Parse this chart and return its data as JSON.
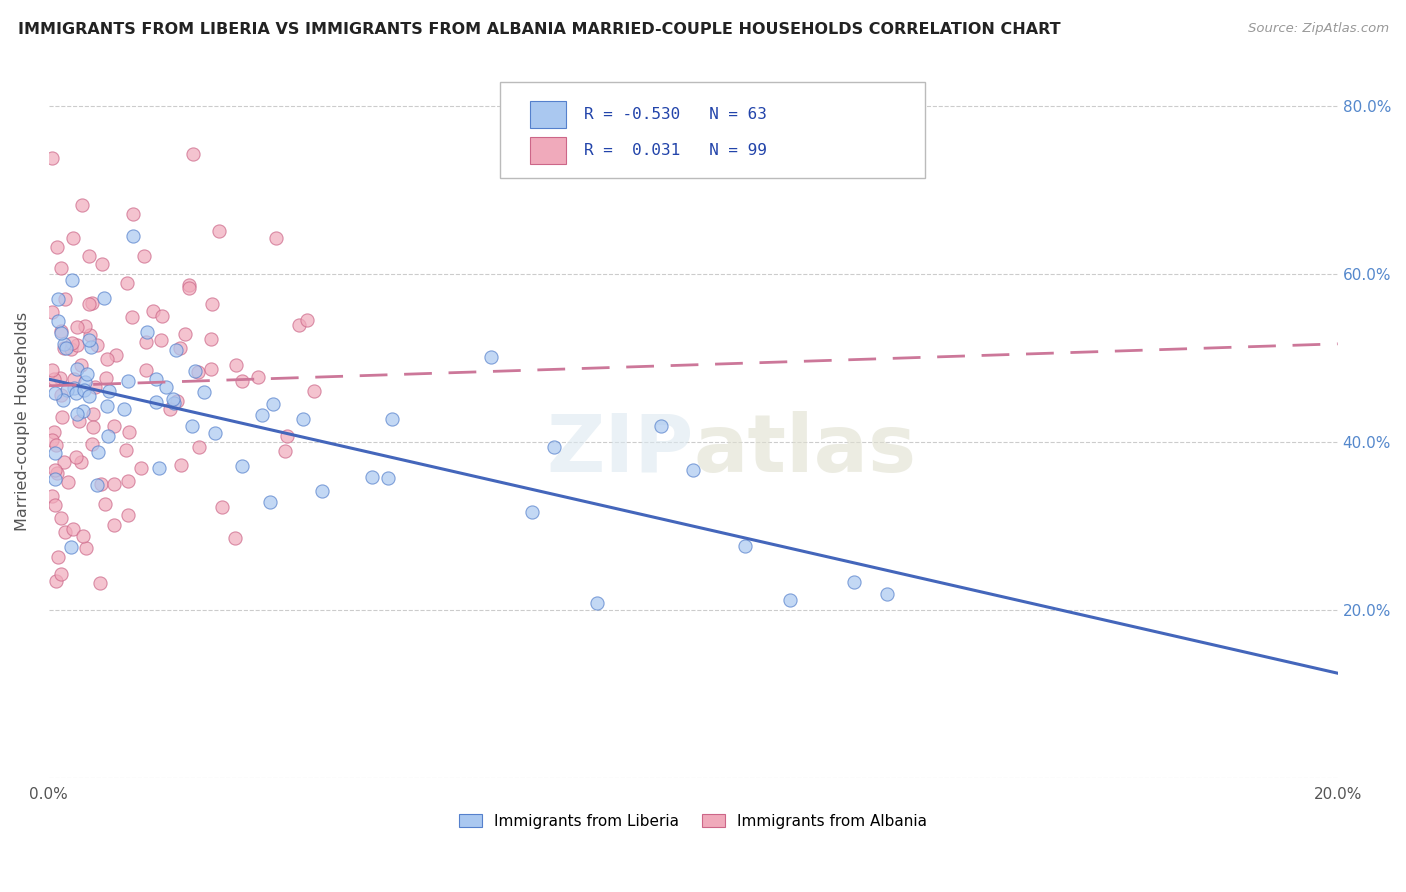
{
  "title": "IMMIGRANTS FROM LIBERIA VS IMMIGRANTS FROM ALBANIA MARRIED-COUPLE HOUSEHOLDS CORRELATION CHART",
  "source": "Source: ZipAtlas.com",
  "ylabel": "Married-couple Households",
  "legend_label_1": "Immigrants from Liberia",
  "legend_label_2": "Immigrants from Albania",
  "R1": -0.53,
  "N1": 63,
  "R2": 0.031,
  "N2": 99,
  "color_liberia": "#aac8f0",
  "color_albania": "#f0aabb",
  "edge_liberia": "#5580cc",
  "edge_albania": "#cc6688",
  "line_liberia": "#4466bb",
  "line_albania": "#cc7799",
  "xlim": [
    0.0,
    0.2
  ],
  "ylim": [
    0.0,
    0.85
  ],
  "background_color": "#ffffff",
  "lib_intercept": 0.475,
  "lib_slope": -1.75,
  "alb_intercept": 0.467,
  "alb_slope": 0.25
}
